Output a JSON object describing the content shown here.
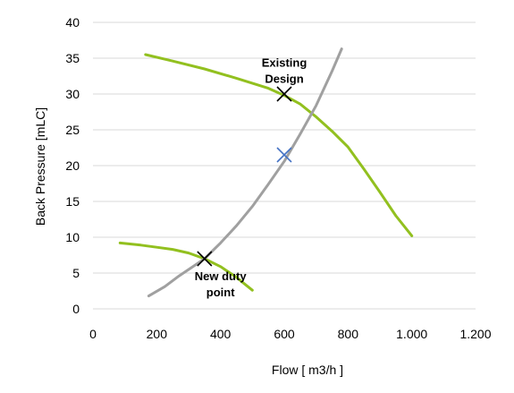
{
  "chart_data": {
    "type": "line",
    "xlabel": "Flow [ m3/h ]",
    "ylabel": "Back Pressure [mLC]",
    "xlim": [
      0,
      1200
    ],
    "ylim": [
      0,
      40
    ],
    "x_ticks": [
      0,
      200,
      400,
      600,
      800,
      1000,
      1200
    ],
    "x_tick_labels": [
      "0",
      "200",
      "400",
      "600",
      "800",
      "1.000",
      "1.200"
    ],
    "y_ticks": [
      0,
      5,
      10,
      15,
      20,
      25,
      30,
      35,
      40
    ],
    "y_tick_labels": [
      "0",
      "5",
      "10",
      "15",
      "20",
      "25",
      "30",
      "35",
      "40"
    ],
    "grid": "horizontal",
    "legend": "none",
    "series": [
      {
        "color": "#92c01f",
        "x": [
          165,
          250,
          350,
          450,
          550,
          600,
          650,
          700,
          750,
          800,
          850,
          900,
          950,
          1000
        ],
        "y": [
          35.5,
          34.6,
          33.5,
          32.2,
          30.8,
          29.8,
          28.6,
          26.8,
          24.8,
          22.6,
          19.5,
          16.3,
          13.0,
          10.2
        ]
      },
      {
        "color": "#92c01f",
        "x": [
          85,
          150,
          200,
          250,
          300,
          350,
          400,
          450,
          500
        ],
        "y": [
          9.2,
          8.9,
          8.6,
          8.3,
          7.8,
          7.0,
          5.9,
          4.4,
          2.6
        ]
      },
      {
        "color": "#a0a0a0",
        "x": [
          175,
          225,
          270,
          310,
          350,
          400,
          450,
          500,
          550,
          600,
          650,
          700,
          750,
          780
        ],
        "y": [
          1.8,
          3.1,
          4.6,
          5.8,
          7.0,
          9.2,
          11.6,
          14.3,
          17.4,
          20.6,
          24.4,
          28.4,
          33.2,
          36.3
        ]
      }
    ],
    "markers": [
      {
        "x": 600,
        "y": 30,
        "color": "#000000",
        "shape": "x"
      },
      {
        "x": 350,
        "y": 7,
        "color": "#000000",
        "shape": "x"
      },
      {
        "x": 600,
        "y": 21.5,
        "color": "#4472c4",
        "shape": "x"
      }
    ],
    "annotations": [
      {
        "lines": [
          "Existing",
          "Design"
        ],
        "x": 600,
        "y": 33.8
      },
      {
        "lines": [
          "New duty",
          "point"
        ],
        "x": 400,
        "y": 4.0
      }
    ]
  }
}
